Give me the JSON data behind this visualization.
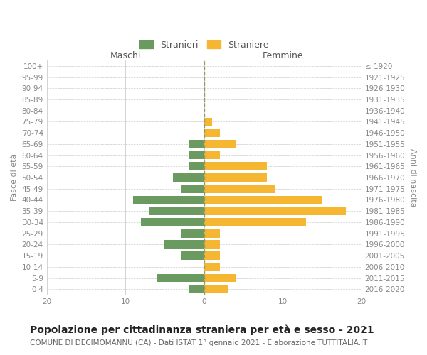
{
  "age_groups": [
    "100+",
    "95-99",
    "90-94",
    "85-89",
    "80-84",
    "75-79",
    "70-74",
    "65-69",
    "60-64",
    "55-59",
    "50-54",
    "45-49",
    "40-44",
    "35-39",
    "30-34",
    "25-29",
    "20-24",
    "15-19",
    "10-14",
    "5-9",
    "0-4"
  ],
  "birth_years": [
    "≤ 1920",
    "1921-1925",
    "1926-1930",
    "1931-1935",
    "1936-1940",
    "1941-1945",
    "1946-1950",
    "1951-1955",
    "1956-1960",
    "1961-1965",
    "1966-1970",
    "1971-1975",
    "1976-1980",
    "1981-1985",
    "1986-1990",
    "1991-1995",
    "1996-2000",
    "2001-2005",
    "2006-2010",
    "2011-2015",
    "2016-2020"
  ],
  "stranieri": [
    0,
    0,
    0,
    0,
    0,
    0,
    0,
    2,
    2,
    2,
    4,
    3,
    9,
    7,
    8,
    3,
    5,
    3,
    0,
    6,
    2
  ],
  "straniere": [
    0,
    0,
    0,
    0,
    0,
    1,
    2,
    4,
    2,
    8,
    8,
    9,
    15,
    18,
    13,
    2,
    2,
    2,
    2,
    4,
    3
  ],
  "color_stranieri": "#6a9a5f",
  "color_straniere": "#f5b731",
  "xlim": 20,
  "title": "Popolazione per cittadinanza straniera per età e sesso - 2021",
  "subtitle": "COMUNE DI DECIMOMANNU (CA) - Dati ISTAT 1° gennaio 2021 - Elaborazione TUTTITALIA.IT",
  "ylabel_left": "Fasce di età",
  "ylabel_right": "Anni di nascita",
  "header_left": "Maschi",
  "header_right": "Femmine",
  "legend_stranieri": "Stranieri",
  "legend_straniere": "Straniere",
  "bg_color": "#ffffff",
  "grid_color": "#cccccc",
  "bar_height": 0.75,
  "title_fontsize": 10,
  "subtitle_fontsize": 7.5,
  "label_fontsize": 8,
  "tick_fontsize": 7.5
}
